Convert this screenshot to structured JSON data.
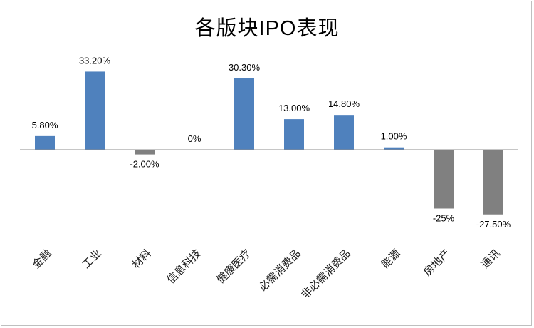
{
  "chart_data": {
    "type": "bar",
    "title": "各版块IPO表现",
    "categories": [
      "金融",
      "工业",
      "材料",
      "信息科技",
      "健康医疗",
      "必需消费品",
      "非必需消费品",
      "能源",
      "房地产",
      "通讯"
    ],
    "values": [
      5.8,
      33.2,
      -2.0,
      0,
      30.3,
      13.0,
      14.8,
      1.0,
      -25,
      -27.5
    ],
    "data_labels": [
      "5.80%",
      "33.20%",
      "-2.00%",
      "0%",
      "30.30%",
      "13.00%",
      "14.80%",
      "1.00%",
      "-25%",
      "-27.50%"
    ],
    "ylim": [
      -40,
      40
    ],
    "grid": false,
    "legend": false,
    "colors": {
      "positive": "#4f81bd",
      "negative": "#808080",
      "axis": "#8c8c8c"
    }
  }
}
